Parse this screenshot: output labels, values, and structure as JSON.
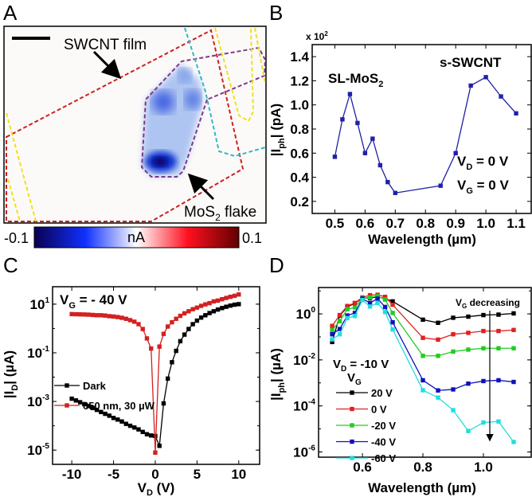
{
  "panels": {
    "a": "A",
    "b": "B",
    "c": "C",
    "d": "D"
  },
  "panel_a": {
    "label_film": "SWCNT film",
    "label_flake_pre": "MoS",
    "label_flake_sub": "2",
    "label_flake_post": " flake",
    "colorbar": {
      "min": "-0.1",
      "max": "0.1",
      "unit": "nA",
      "colors": [
        "#0a0050",
        "#1030ff",
        "#ffffff",
        "#ff1020",
        "#600000"
      ]
    }
  },
  "chart_data": [
    {
      "id": "b",
      "type": "line",
      "log_y": false,
      "xlabel": "Wavelength (µm)",
      "ylabel": {
        "pre": "|I",
        "sub": "ph",
        "post": "| (pA)"
      },
      "y_multiplier": "x 10",
      "y_multiplier_exp": "2",
      "xlim": [
        0.425,
        1.15
      ],
      "ylim": [
        0.1,
        1.5
      ],
      "xticks": [
        "0.5",
        "0.6",
        "0.7",
        "0.8",
        "0.9",
        "1.0",
        "1.1"
      ],
      "yticks": [
        "0.2",
        "0.4",
        "0.6",
        "0.8",
        "1.0",
        "1.2",
        "1.4"
      ],
      "annotations": {
        "mos2_pre": "SL-MoS",
        "mos2_sub": "2",
        "swcnt": "s-SWCNT",
        "vd_pre": "V",
        "vd_sub": "D",
        "vd_post": " = 0 V",
        "vg_pre": "V",
        "vg_sub": "G",
        "vg_post": " = 0 V"
      },
      "series": [
        {
          "color": "#2020a8",
          "x": [
            0.5,
            0.525,
            0.55,
            0.575,
            0.6,
            0.625,
            0.65,
            0.675,
            0.7,
            0.85,
            0.9,
            0.95,
            1.0,
            1.05,
            1.1
          ],
          "y": [
            0.57,
            0.88,
            1.09,
            0.85,
            0.6,
            0.72,
            0.5,
            0.36,
            0.27,
            0.33,
            0.6,
            1.16,
            1.23,
            1.07,
            0.93
          ]
        }
      ]
    },
    {
      "id": "c",
      "type": "line",
      "log_y": true,
      "xlabel": {
        "pre": "V",
        "sub": "D",
        "post": " (V)"
      },
      "ylabel": {
        "pre": "|I",
        "sub": "D",
        "post": "| (µA)"
      },
      "xlim": [
        -12.3,
        12.5
      ],
      "ylim": [
        2.6e-06,
        52
      ],
      "xticks": [
        "-10",
        "-5",
        "0",
        "5",
        "10"
      ],
      "yticks": [
        {
          "base": "10",
          "exp": "1",
          "value": 10
        },
        {
          "base": "10",
          "exp": "-1",
          "value": 0.1
        },
        {
          "base": "10",
          "exp": "-3",
          "value": 0.001
        },
        {
          "base": "10",
          "exp": "-5",
          "value": 1e-05
        }
      ],
      "annotations": {
        "vg_pre": "V",
        "vg_sub": "G",
        "vg_post": " = - 40 V"
      },
      "legend_placement": "center-left",
      "series": [
        {
          "name": "Dark",
          "color": "#000000",
          "x": [
            -10,
            -9.5,
            -9,
            -8.5,
            -8,
            -7.5,
            -7,
            -6.5,
            -6,
            -5.5,
            -5,
            -4.5,
            -4,
            -3.5,
            -3,
            -2.5,
            -2,
            -1.5,
            -1,
            -0.5,
            0,
            0.5,
            1,
            1.5,
            2,
            2.5,
            3,
            3.5,
            4,
            4.5,
            5,
            5.5,
            6,
            6.5,
            7,
            7.5,
            8,
            8.5,
            9,
            9.5,
            10
          ],
          "y": [
            0.0013,
            0.0011,
            0.00093,
            0.00078,
            0.00065,
            0.00054,
            0.00045,
            0.00037,
            0.00031,
            0.00026,
            0.00021,
            0.00018,
            0.00015,
            0.00012,
            0.0001,
            8.5e-05,
            7.1e-05,
            5.6e-05,
            4.5e-05,
            4e-05,
            3.8e-05,
            1.5e-05,
            0.00083,
            0.0087,
            0.041,
            0.12,
            0.3,
            0.56,
            0.95,
            1.5,
            2.1,
            2.8,
            3.5,
            4.3,
            5.1,
            6.0,
            6.9,
            7.8,
            8.7,
            9.5,
            10
          ]
        },
        {
          "name": "650 nm, 30 µW",
          "color": "#d42020",
          "x": [
            -10,
            -9.5,
            -9,
            -8.5,
            -8,
            -7.5,
            -7,
            -6.5,
            -6,
            -5.5,
            -5,
            -4.5,
            -4,
            -3.5,
            -3,
            -2.5,
            -2,
            -1.5,
            -1,
            -0.5,
            0,
            0.5,
            1,
            1.5,
            2,
            2.5,
            3,
            3.5,
            4,
            4.5,
            5,
            5.5,
            6,
            6.5,
            7,
            7.5,
            8,
            8.5,
            9,
            9.5,
            10
          ],
          "y": [
            3.9,
            3.85,
            3.8,
            3.76,
            3.7,
            3.6,
            3.5,
            3.5,
            3.4,
            3.2,
            3.1,
            2.95,
            2.75,
            2.5,
            2.2,
            1.9,
            1.5,
            0.95,
            0.39,
            0.15,
            7.9e-06,
            0.18,
            0.6,
            1.2,
            1.8,
            2.5,
            3.3,
            4.2,
            5.1,
            6.2,
            7.2,
            8.5,
            9.8,
            11,
            13,
            14,
            16,
            18,
            20,
            22,
            25
          ]
        }
      ]
    },
    {
      "id": "d",
      "type": "line",
      "log_y": true,
      "xlabel": "Wavelength (µm)",
      "ylabel": {
        "pre": "|I",
        "sub": "ph",
        "post": "| (µA)"
      },
      "xlim": [
        0.455,
        1.158
      ],
      "ylim": [
        5.9e-07,
        14
      ],
      "xticks": [
        "0.6",
        "0.8",
        "1.0"
      ],
      "yticks": [
        {
          "base": "10",
          "exp": "0",
          "value": 1
        },
        {
          "base": "10",
          "exp": "-2",
          "value": 0.01
        },
        {
          "base": "10",
          "exp": "-4",
          "value": 0.0001
        },
        {
          "base": "10",
          "exp": "-6",
          "value": 1e-06
        }
      ],
      "annotations": {
        "arrow_pre": "V",
        "arrow_sub": "G",
        "arrow_post": " decreasing",
        "vd_pre": "V",
        "vd_sub": "D",
        "vd_post": " = -10 V",
        "legend_title_pre": "V",
        "legend_title_sub": "G"
      },
      "legend_placement": "bottom-left",
      "x": [
        0.5,
        0.525,
        0.55,
        0.575,
        0.6,
        0.625,
        0.65,
        0.675,
        0.7,
        0.8,
        0.85,
        0.9,
        0.95,
        1.0,
        1.05,
        1.1
      ],
      "series": [
        {
          "name": "20 V",
          "color": "#000000",
          "y": [
            0.06,
            0.85,
            2.0,
            2.9,
            4.9,
            4.9,
            5.5,
            4.6,
            3.5,
            0.56,
            0.41,
            0.68,
            0.76,
            0.89,
            0.93,
            1.05
          ]
        },
        {
          "name": "0 V",
          "color": "#e02020",
          "y": [
            0.3,
            0.89,
            2.2,
            3.0,
            5.2,
            6.5,
            6.8,
            5.5,
            2.5,
            0.091,
            0.076,
            0.13,
            0.15,
            0.18,
            0.18,
            0.2
          ]
        },
        {
          "name": "-20 V",
          "color": "#22cc22",
          "y": [
            0.2,
            0.48,
            1.6,
            1.9,
            4.8,
            5.2,
            5.9,
            4.2,
            1.1,
            0.015,
            0.015,
            0.023,
            0.028,
            0.032,
            0.032,
            0.032
          ]
        },
        {
          "name": "-40 V",
          "color": "#1010c0",
          "y": [
            0.13,
            0.22,
            0.85,
            1.1,
            4.6,
            3.0,
            4.6,
            2.0,
            0.43,
            0.0013,
            0.00047,
            0.00052,
            0.00093,
            0.0012,
            0.0013,
            0.0011
          ]
        },
        {
          "name": "-60 V",
          "color": "#22dddd",
          "y": [
            0.078,
            0.13,
            0.66,
            0.81,
            4.0,
            2.1,
            3.0,
            1.2,
            0.21,
            0.00048,
            0.00023,
            6.5e-05,
            8.1e-06,
            1.9e-05,
            2.1e-05,
            2.7e-06
          ]
        }
      ]
    }
  ]
}
